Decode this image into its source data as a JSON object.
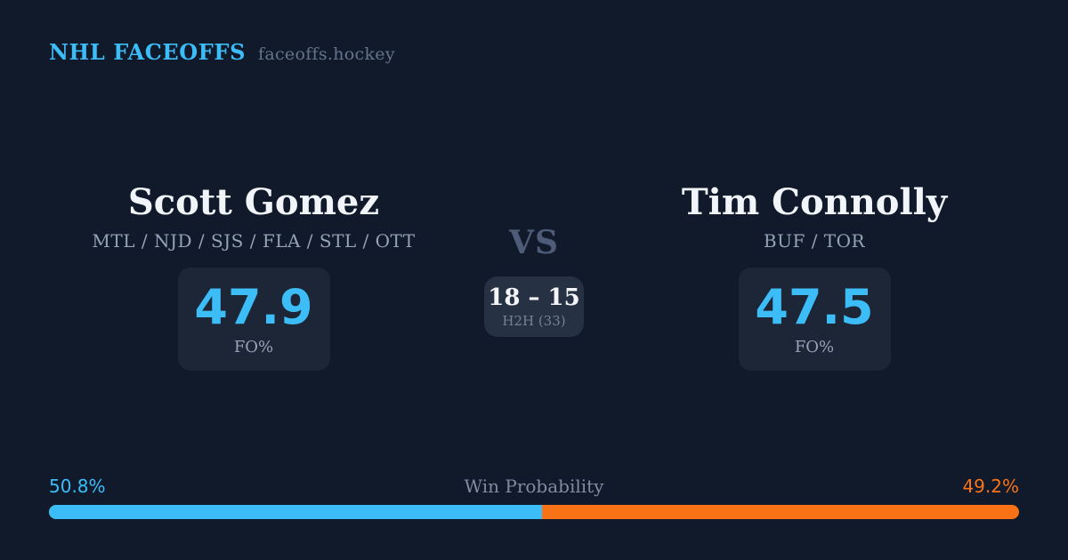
{
  "colors": {
    "background": "#111a2b",
    "panel": "#1d2636",
    "panel_light": "#273144",
    "accent_blue": "#3cbdf8",
    "accent_orange": "#f97316",
    "text_white": "#f1f5f9",
    "text_gray": "#94a3b8",
    "text_muted": "#64748b"
  },
  "header": {
    "brand": "NHL FACEOFFS",
    "domain": "faceoffs.hockey"
  },
  "matchup": {
    "vs_label": "VS",
    "h2h": {
      "score": "18 – 15",
      "label": "H2H (33)"
    },
    "players": [
      {
        "name": "Scott Gomez",
        "teams": "MTL / NJD / SJS / FLA / STL / OTT",
        "stat_value": "47.9",
        "stat_label": "FO%"
      },
      {
        "name": "Tim Connolly",
        "teams": "BUF / TOR",
        "stat_value": "47.5",
        "stat_label": "FO%"
      }
    ]
  },
  "win_probability": {
    "title": "Win Probability",
    "left_pct_label": "50.8%",
    "right_pct_label": "49.2%",
    "left_value": 50.8,
    "right_value": 49.2
  },
  "chart_data": {
    "type": "bar",
    "title": "Win Probability",
    "orientation": "horizontal-stacked",
    "categories": [
      "Scott Gomez",
      "Tim Connolly"
    ],
    "values": [
      50.8,
      49.2
    ],
    "unit": "%",
    "colors": [
      "#3cbdf8",
      "#f97316"
    ],
    "related_stats": {
      "faceoff_pct": [
        47.9,
        47.5
      ],
      "head_to_head": {
        "left_wins": 18,
        "right_wins": 15,
        "total": 33
      }
    }
  }
}
